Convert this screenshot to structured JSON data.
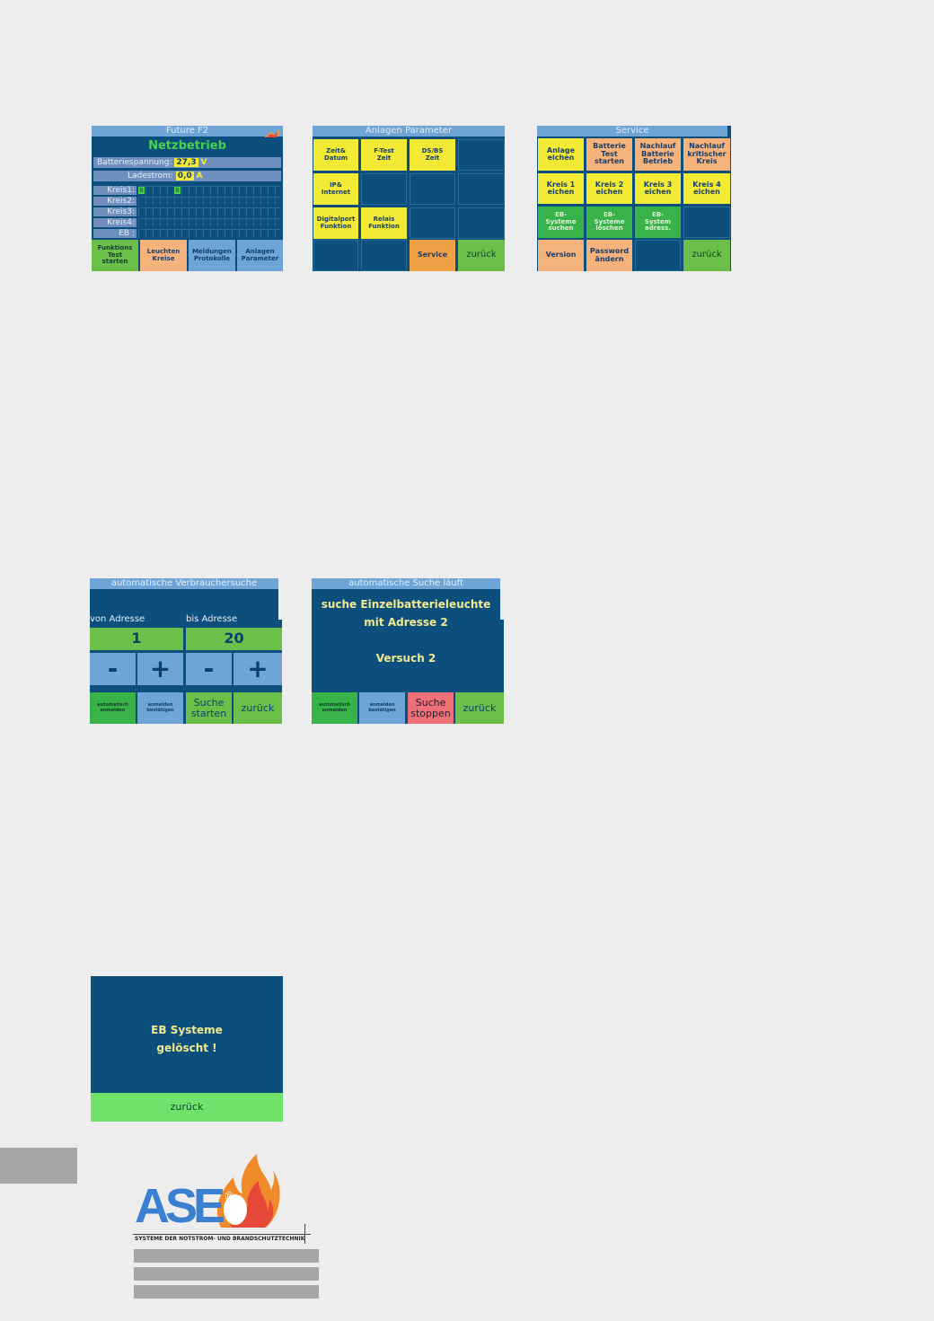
{
  "screen1": {
    "title": "Future F2",
    "status": "Netzbetrieb",
    "battery_label": "Batteriespannung:",
    "battery_value": "27,3",
    "battery_unit": "V",
    "charge_label": "Ladestrom:",
    "charge_value": "0,0",
    "charge_unit": "A",
    "rows": [
      "Kreis1:",
      "Kreis2:",
      "Kreis3:",
      "Kreis4:",
      "EB :"
    ],
    "kreis1_markers": [
      "8",
      "8"
    ],
    "buttons": [
      {
        "label": "Funktions\nTest\nstarten",
        "color": "#6cc04a"
      },
      {
        "label": "Leuchten\nKreise",
        "color": "#f5b27a"
      },
      {
        "label": "Meldungen\nProtokolle",
        "color": "#6fa5d6"
      },
      {
        "label": "Anlagen\nParameter",
        "color": "#6fa5d6"
      }
    ]
  },
  "screen2": {
    "title": "Anlagen Parameter",
    "cells": [
      "Zeit&\nDatum",
      "F-Test\nZeit",
      "DS/BS\nZeit",
      "IP&\nInternet",
      "Digitalport\nFunktion",
      "Relais\nFunktion",
      "Service",
      "zurück"
    ]
  },
  "screen3": {
    "title": "Service",
    "cells": [
      "Anlage\neichen",
      "Batterie\nTest\nstarten",
      "Nachlauf\nBatterie\nBetrieb",
      "Nachlauf\nkritischer\nKreis",
      "Kreis 1\neichen",
      "Kreis 2\neichen",
      "Kreis 3\neichen",
      "Kreis 4\neichen",
      "EB-\nSysteme\nsuchen",
      "EB-\nSysteme\nlöschen",
      "EB-\nSystem\nadress.",
      "Version",
      "Password\nändern",
      "zurück"
    ]
  },
  "screen4": {
    "title": "automatische Verbrauchersuche",
    "from_label": "von Adresse",
    "to_label": "bis Adresse",
    "from_value": "1",
    "to_value": "20",
    "minus": "-",
    "plus": "+",
    "buttons": [
      "automatisch\nanmelden",
      "anmelden\nbestätigen",
      "Suche\nstarten",
      "zurück"
    ]
  },
  "screen5": {
    "title": "automatische Suche läuft",
    "line1": "suche Einzelbatterieleuchte",
    "line2": "mit Adresse 2",
    "line3": "Versuch 2",
    "buttons": [
      "automatisch\nanmelden",
      "anmelden\nbestätigen",
      "Suche\nstoppen",
      "zurück"
    ]
  },
  "screen6": {
    "message": "EB Systeme\ngelöscht !",
    "button": "zurück"
  },
  "logo": {
    "brand": "ASE",
    "registered": "®",
    "tagline": "SYSTEME DER NOTSTROM- UND BRANDSCHUTZTECHNIK"
  },
  "colors": {
    "screen_bg": "#0d4f7c",
    "title_bar": "#6fa5d6",
    "yellow": "#f2ea33",
    "orange": "#f5b27a",
    "green": "#38b34a",
    "light_green": "#6cc04a",
    "red": "#ed6f78",
    "mint": "#6fe26a"
  }
}
